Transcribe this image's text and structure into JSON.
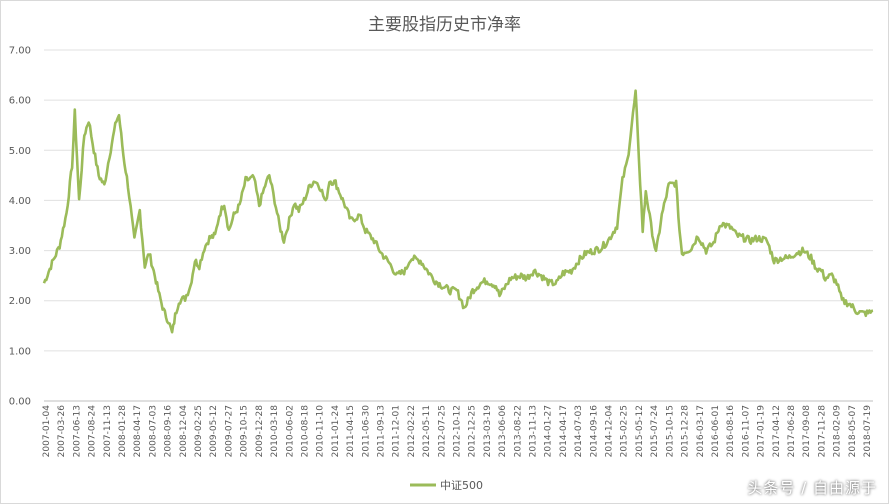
{
  "chart_data": {
    "type": "line",
    "title": "主要股指历史市净率",
    "xlabel": "",
    "ylabel": "",
    "ylim": [
      0,
      7
    ],
    "yticks": [
      "0.00",
      "1.00",
      "2.00",
      "3.00",
      "4.00",
      "5.00",
      "6.00",
      "7.00"
    ],
    "grid": true,
    "legend": "bottom-center",
    "x_tick_labels": [
      "2007-01-04",
      "2007-03-26",
      "2007-06-13",
      "2007-08-24",
      "2007-11-13",
      "2008-01-28",
      "2008-04-17",
      "2008-07-03",
      "2008-09-16",
      "2008-12-04",
      "2009-02-25",
      "2009-05-12",
      "2009-07-27",
      "2009-10-15",
      "2009-12-28",
      "2010-03-18",
      "2010-06-02",
      "2010-08-18",
      "2010-11-10",
      "2011-01-24",
      "2011-04-15",
      "2011-06-30",
      "2011-09-13",
      "2011-12-01",
      "2012-02-22",
      "2012-05-11",
      "2012-07-25",
      "2012-10-12",
      "2012-12-25",
      "2013-03-19",
      "2013-06-06",
      "2013-08-22",
      "2013-11-13",
      "2014-01-27",
      "2014-04-17",
      "2014-07-03",
      "2014-09-16",
      "2014-12-04",
      "2015-02-25",
      "2015-05-12",
      "2015-07-24",
      "2015-10-15",
      "2015-12-28",
      "2016-03-17",
      "2016-06-01",
      "2016-08-16",
      "2016-11-07",
      "2017-01-19",
      "2017-04-12",
      "2017-06-28",
      "2017-09-08",
      "2017-11-28",
      "2018-02-09",
      "2018-05-07",
      "2018-07-19"
    ],
    "series": [
      {
        "name": "中证500",
        "color": "#9bbb59",
        "x": [
          "2007-01-04",
          "2007-02-15",
          "2007-03-26",
          "2007-05-01",
          "2007-05-30",
          "2007-06-13",
          "2007-07-05",
          "2007-08-01",
          "2007-08-24",
          "2007-09-20",
          "2007-10-15",
          "2007-11-13",
          "2007-12-10",
          "2008-01-15",
          "2008-01-28",
          "2008-02-20",
          "2008-03-15",
          "2008-04-17",
          "2008-05-15",
          "2008-06-10",
          "2008-07-03",
          "2008-08-01",
          "2008-08-25",
          "2008-09-16",
          "2008-10-10",
          "2008-10-30",
          "2008-11-15",
          "2008-12-04",
          "2009-01-05",
          "2009-02-02",
          "2009-02-25",
          "2009-03-20",
          "2009-04-15",
          "2009-05-12",
          "2009-06-10",
          "2009-07-01",
          "2009-07-27",
          "2009-08-20",
          "2009-09-15",
          "2009-10-15",
          "2009-11-15",
          "2009-12-28",
          "2010-01-25",
          "2010-02-25",
          "2010-03-18",
          "2010-04-15",
          "2010-05-10",
          "2010-06-02",
          "2010-06-30",
          "2010-07-25",
          "2010-08-18",
          "2010-09-15",
          "2010-10-15",
          "2010-11-10",
          "2010-12-10",
          "2011-01-05",
          "2011-01-24",
          "2011-02-25",
          "2011-04-15",
          "2011-05-15",
          "2011-06-30",
          "2011-07-30",
          "2011-09-13",
          "2011-10-20",
          "2011-12-01",
          "2012-01-10",
          "2012-02-22",
          "2012-03-20",
          "2012-05-11",
          "2012-06-15",
          "2012-07-25",
          "2012-08-30",
          "2012-10-12",
          "2012-11-15",
          "2012-12-04",
          "2012-12-25",
          "2013-02-05",
          "2013-03-19",
          "2013-04-20",
          "2013-06-06",
          "2013-06-25",
          "2013-08-22",
          "2013-10-15",
          "2013-11-13",
          "2013-12-20",
          "2014-01-27",
          "2014-03-10",
          "2014-04-17",
          "2014-05-20",
          "2014-07-03",
          "2014-08-10",
          "2014-09-16",
          "2014-10-30",
          "2014-12-04",
          "2015-01-10",
          "2015-02-25",
          "2015-03-25",
          "2015-04-20",
          "2015-05-12",
          "2015-06-01",
          "2015-06-12",
          "2015-07-08",
          "2015-07-24",
          "2015-08-20",
          "2015-09-15",
          "2015-10-15",
          "2015-11-20",
          "2015-12-28",
          "2016-01-15",
          "2016-01-28",
          "2016-03-17",
          "2016-04-20",
          "2016-06-01",
          "2016-07-10",
          "2016-08-16",
          "2016-10-10",
          "2016-11-07",
          "2016-12-15",
          "2017-01-19",
          "2017-02-25",
          "2017-04-12",
          "2017-05-20",
          "2017-06-28",
          "2017-08-01",
          "2017-09-08",
          "2017-10-20",
          "2017-11-28",
          "2017-12-25",
          "2018-01-20",
          "2018-02-09",
          "2018-03-15",
          "2018-04-10",
          "2018-05-07",
          "2018-06-10",
          "2018-06-25",
          "2018-07-19",
          "2018-08-20",
          "2018-09-20",
          "2018-10-15"
        ],
        "values": [
          2.35,
          2.75,
          3.1,
          3.75,
          4.7,
          5.75,
          4.0,
          5.3,
          5.6,
          5.0,
          4.5,
          4.3,
          4.9,
          5.6,
          5.7,
          4.9,
          4.3,
          3.2,
          3.8,
          2.7,
          2.95,
          2.5,
          2.1,
          1.8,
          1.6,
          1.35,
          1.7,
          2.0,
          2.05,
          2.3,
          2.8,
          2.7,
          3.05,
          3.25,
          3.3,
          3.7,
          3.95,
          3.4,
          3.7,
          3.9,
          4.4,
          4.45,
          3.9,
          4.3,
          4.5,
          4.0,
          3.5,
          3.2,
          3.6,
          3.95,
          3.8,
          4.0,
          4.3,
          4.4,
          4.25,
          3.95,
          4.4,
          4.35,
          3.9,
          3.6,
          3.7,
          3.4,
          3.2,
          2.95,
          2.75,
          2.5,
          2.6,
          2.85,
          2.8,
          2.6,
          2.4,
          2.3,
          2.2,
          2.2,
          2.05,
          1.85,
          2.2,
          2.35,
          2.4,
          2.3,
          2.1,
          2.45,
          2.5,
          2.45,
          2.6,
          2.5,
          2.35,
          2.35,
          2.55,
          2.6,
          2.8,
          2.95,
          3.0,
          3.05,
          3.2,
          3.5,
          4.4,
          4.8,
          5.5,
          6.15,
          5.3,
          3.4,
          4.2,
          3.5,
          2.95,
          3.7,
          4.3,
          4.35,
          3.4,
          2.95,
          3.05,
          3.3,
          3.0,
          3.15,
          3.55,
          3.45,
          3.3,
          3.25,
          3.2,
          3.25,
          3.2,
          2.8,
          2.85,
          2.85,
          2.95,
          3.0,
          2.85,
          2.65,
          2.6,
          2.45,
          2.5,
          2.35,
          2.0,
          1.95,
          1.9,
          1.8,
          1.75,
          1.75,
          1.8
        ]
      }
    ]
  },
  "watermark": "头条号 / 自由源于"
}
